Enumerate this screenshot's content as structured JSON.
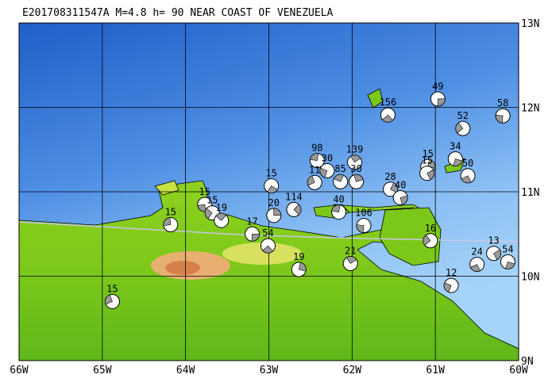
{
  "title": "E201708311547A M=4.8 h= 90 NEAR COAST OF VENEZUELA",
  "lon_ticks": [
    {
      "value": -66,
      "label": "66W"
    },
    {
      "value": -65,
      "label": "65W"
    },
    {
      "value": -64,
      "label": "64W"
    },
    {
      "value": -63,
      "label": "63W"
    },
    {
      "value": -62,
      "label": "62W"
    },
    {
      "value": -61,
      "label": "61W"
    },
    {
      "value": -60,
      "label": "60W"
    }
  ],
  "lat_ticks": [
    {
      "value": 13,
      "label": "13N"
    },
    {
      "value": 12,
      "label": "12N"
    },
    {
      "value": 11,
      "label": "11N"
    },
    {
      "value": 10,
      "label": "10N"
    },
    {
      "value": 9,
      "label": "9N"
    }
  ],
  "events": [
    {
      "depth": 49,
      "lon": -60.97,
      "lat": 12.1
    },
    {
      "depth": 156,
      "lon": -61.57,
      "lat": 11.91
    },
    {
      "depth": 58,
      "lon": -60.19,
      "lat": 11.9
    },
    {
      "depth": 52,
      "lon": -60.67,
      "lat": 11.75
    },
    {
      "depth": 98,
      "lon": -62.42,
      "lat": 11.37
    },
    {
      "depth": 139,
      "lon": -61.97,
      "lat": 11.35
    },
    {
      "depth": 15,
      "lon": -61.09,
      "lat": 11.3
    },
    {
      "depth": 15,
      "lon": -61.1,
      "lat": 11.22
    },
    {
      "depth": 34,
      "lon": -60.76,
      "lat": 11.39
    },
    {
      "depth": 50,
      "lon": -60.61,
      "lat": 11.19
    },
    {
      "depth": 30,
      "lon": -62.3,
      "lat": 11.25
    },
    {
      "depth": 11,
      "lon": -62.45,
      "lat": 11.11
    },
    {
      "depth": 85,
      "lon": -62.14,
      "lat": 11.12
    },
    {
      "depth": 30,
      "lon": -61.95,
      "lat": 11.12
    },
    {
      "depth": 28,
      "lon": -61.54,
      "lat": 11.03
    },
    {
      "depth": 40,
      "lon": -61.42,
      "lat": 10.93
    },
    {
      "depth": 15,
      "lon": -62.97,
      "lat": 11.07
    },
    {
      "depth": 15,
      "lon": -63.77,
      "lat": 10.85
    },
    {
      "depth": 15,
      "lon": -63.68,
      "lat": 10.75
    },
    {
      "depth": 15,
      "lon": -64.18,
      "lat": 10.61
    },
    {
      "depth": 19,
      "lon": -63.57,
      "lat": 10.66
    },
    {
      "depth": 20,
      "lon": -62.94,
      "lat": 10.72
    },
    {
      "depth": 114,
      "lon": -62.7,
      "lat": 10.79
    },
    {
      "depth": 17,
      "lon": -63.2,
      "lat": 10.5
    },
    {
      "depth": 54,
      "lon": -63.01,
      "lat": 10.36
    },
    {
      "depth": 106,
      "lon": -61.86,
      "lat": 10.6
    },
    {
      "depth": 16,
      "lon": -61.06,
      "lat": 10.42
    },
    {
      "depth": 40,
      "lon": -62.16,
      "lat": 10.76
    },
    {
      "depth": 21,
      "lon": -62.02,
      "lat": 10.15
    },
    {
      "depth": 19,
      "lon": -62.64,
      "lat": 10.08
    },
    {
      "depth": 13,
      "lon": -60.3,
      "lat": 10.27
    },
    {
      "depth": 54,
      "lon": -60.13,
      "lat": 10.17
    },
    {
      "depth": 24,
      "lon": -60.5,
      "lat": 10.14
    },
    {
      "depth": 12,
      "lon": -60.81,
      "lat": 9.89
    },
    {
      "depth": 15,
      "lon": -64.88,
      "lat": 9.7
    }
  ]
}
